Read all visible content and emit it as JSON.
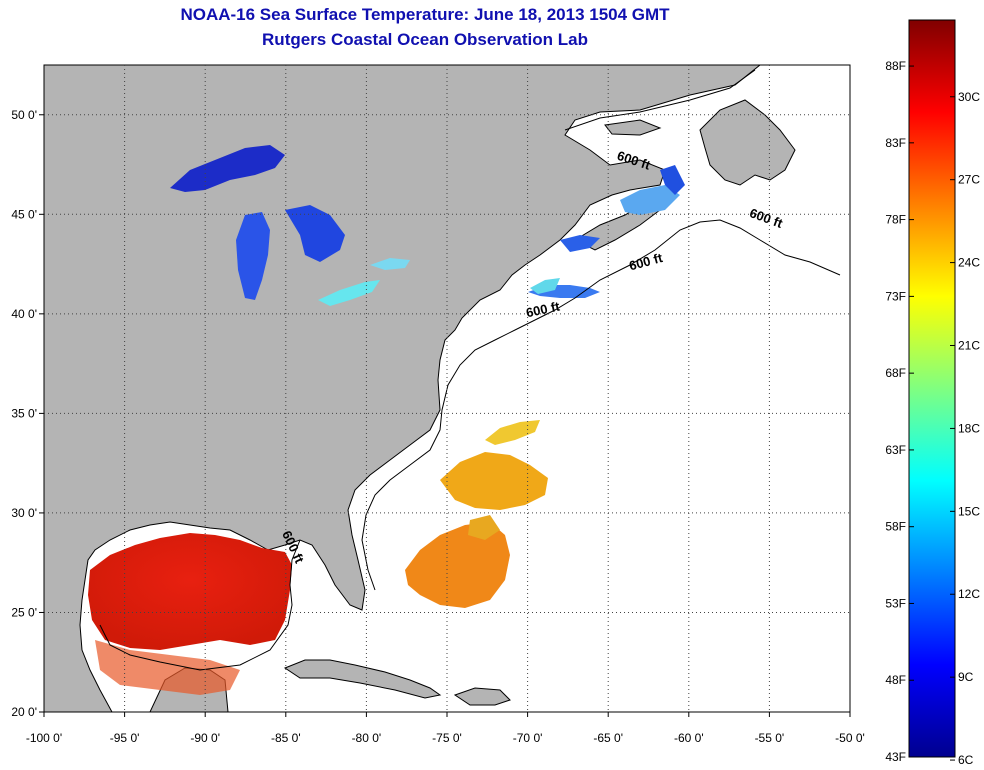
{
  "title": {
    "line1": "NOAA-16 Sea Surface Temperature:  June 18, 2013 1504 GMT",
    "line2": "Rutgers Coastal Ocean Observation Lab"
  },
  "map": {
    "lon_range": [
      -100,
      -50
    ],
    "lat_range": [
      20,
      52.5
    ],
    "x_ticks": [
      {
        "lon": -100,
        "label": "-100 0'"
      },
      {
        "lon": -95,
        "label": "-95 0'"
      },
      {
        "lon": -90,
        "label": "-90 0'"
      },
      {
        "lon": -85,
        "label": "-85 0'"
      },
      {
        "lon": -80,
        "label": "-80 0'"
      },
      {
        "lon": -75,
        "label": "-75 0'"
      },
      {
        "lon": -70,
        "label": "-70 0'"
      },
      {
        "lon": -65,
        "label": "-65 0'"
      },
      {
        "lon": -60,
        "label": "-60 0'"
      },
      {
        "lon": -55,
        "label": "-55 0'"
      },
      {
        "lon": -50,
        "label": "-50 0'"
      }
    ],
    "y_ticks": [
      {
        "lat": 20,
        "label": "20 0'"
      },
      {
        "lat": 25,
        "label": "25 0'"
      },
      {
        "lat": 30,
        "label": "30 0'"
      },
      {
        "lat": 35,
        "label": "35 0'"
      },
      {
        "lat": 40,
        "label": "40 0'"
      },
      {
        "lat": 45,
        "label": "45 0'"
      },
      {
        "lat": 50,
        "label": "50 0'"
      }
    ],
    "contour_label": "600 ft",
    "contour_labels": [
      {
        "lon": -63.5,
        "lat": 47.5,
        "rotate": 18
      },
      {
        "lon": -55.3,
        "lat": 44.6,
        "rotate": 20
      },
      {
        "lon": -62.6,
        "lat": 42.4,
        "rotate": -15
      },
      {
        "lon": -69.0,
        "lat": 40.0,
        "rotate": -12
      },
      {
        "lon": -84.8,
        "lat": 28.2,
        "rotate": 65
      }
    ],
    "colors": {
      "land": "#b4b4b4",
      "ocean": "#ffffff",
      "grid": "#444444",
      "title": "#1010b0"
    }
  },
  "colorbar": {
    "colors": [
      "#00008f",
      "#0000ff",
      "#0080ff",
      "#00ffff",
      "#80ff80",
      "#ffff00",
      "#ff8000",
      "#ff0000",
      "#800000"
    ],
    "fahrenheit_labels": [
      {
        "value": 43,
        "label": "43F"
      },
      {
        "value": 48,
        "label": "48F"
      },
      {
        "value": 53,
        "label": "53F"
      },
      {
        "value": 58,
        "label": "58F"
      },
      {
        "value": 63,
        "label": "63F"
      },
      {
        "value": 68,
        "label": "68F"
      },
      {
        "value": 73,
        "label": "73F"
      },
      {
        "value": 78,
        "label": "78F"
      },
      {
        "value": 83,
        "label": "83F"
      },
      {
        "value": 88,
        "label": "88F"
      }
    ],
    "celsius_labels": [
      {
        "value": 6,
        "label": "6C"
      },
      {
        "value": 9,
        "label": "9C"
      },
      {
        "value": 12,
        "label": "12C"
      },
      {
        "value": 15,
        "label": "15C"
      },
      {
        "value": 18,
        "label": "18C"
      },
      {
        "value": 21,
        "label": "21C"
      },
      {
        "value": 24,
        "label": "24C"
      },
      {
        "value": 27,
        "label": "27C"
      },
      {
        "value": 30,
        "label": "30C"
      }
    ],
    "range_f": [
      43,
      91
    ]
  }
}
